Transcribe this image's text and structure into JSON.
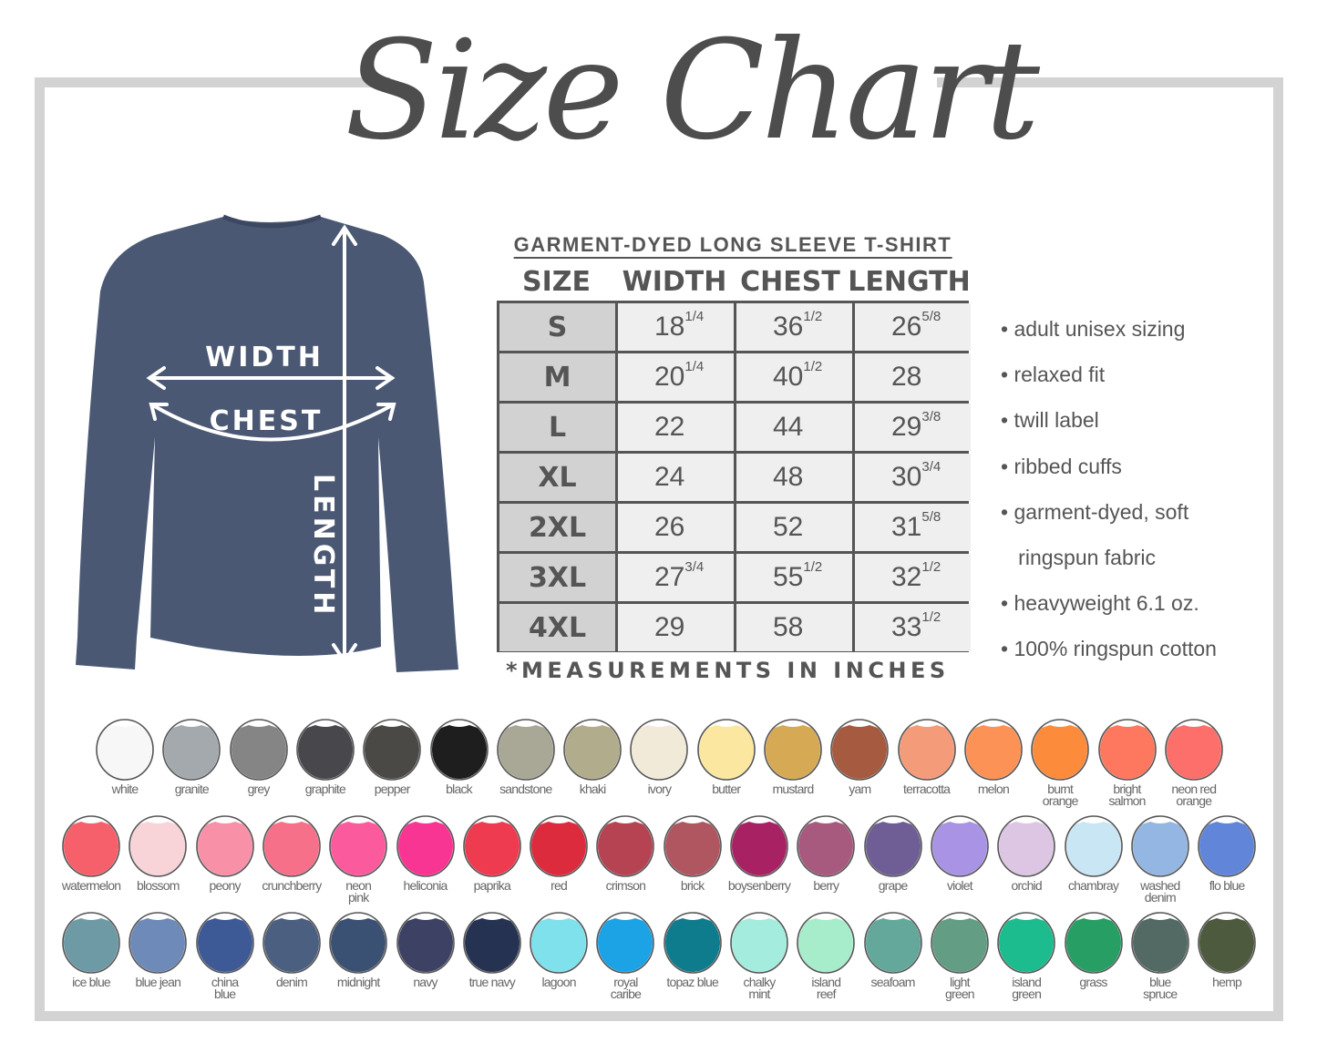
{
  "title": "Size Chart",
  "diagram": {
    "width_label": "WIDTH",
    "chest_label": "CHEST",
    "length_label": "LENGTH",
    "shirt_color": "#4b5874"
  },
  "table": {
    "title": "GARMENT-DYED LONG SLEEVE T-SHIRT",
    "headers": [
      "SIZE",
      "WIDTH",
      "CHEST",
      "LENGTH"
    ],
    "rows": [
      [
        {
          "w": "S"
        },
        {
          "w": "18",
          "f": "1/4"
        },
        {
          "w": "36",
          "f": "1/2"
        },
        {
          "w": "26",
          "f": "5/8"
        }
      ],
      [
        {
          "w": "M"
        },
        {
          "w": "20",
          "f": "1/4"
        },
        {
          "w": "40",
          "f": "1/2"
        },
        {
          "w": "28"
        }
      ],
      [
        {
          "w": "L"
        },
        {
          "w": "22"
        },
        {
          "w": "44"
        },
        {
          "w": "29",
          "f": "3/8"
        }
      ],
      [
        {
          "w": "XL"
        },
        {
          "w": "24"
        },
        {
          "w": "48"
        },
        {
          "w": "30",
          "f": "3/4"
        }
      ],
      [
        {
          "w": "2XL"
        },
        {
          "w": "26"
        },
        {
          "w": "52"
        },
        {
          "w": "31",
          "f": "5/8"
        }
      ],
      [
        {
          "w": "3XL"
        },
        {
          "w": "27",
          "f": "3/4"
        },
        {
          "w": "55",
          "f": "1/2"
        },
        {
          "w": "32",
          "f": "1/2"
        }
      ],
      [
        {
          "w": "4XL"
        },
        {
          "w": "29"
        },
        {
          "w": "58"
        },
        {
          "w": "33",
          "f": "1/2"
        }
      ]
    ],
    "note": "*MEASUREMENTS IN INCHES"
  },
  "features": [
    "• adult unisex sizing",
    "• relaxed fit",
    "• twill label",
    "• ribbed cuffs",
    "• garment-dyed, soft",
    "   ringspun fabric",
    "• heavyweight 6.1 oz.",
    "• 100% ringspun cotton"
  ],
  "colors": [
    [
      [
        "white",
        "#f7f7f7"
      ],
      [
        "granite",
        "#a3a9ad"
      ],
      [
        "grey",
        "#858585"
      ],
      [
        "graphite",
        "#48474c"
      ],
      [
        "pepper",
        "#4a4945"
      ],
      [
        "black",
        "#1e1e1e"
      ],
      [
        "sandstone",
        "#a9a796"
      ],
      [
        "khaki",
        "#b1ad8c"
      ],
      [
        "ivory",
        "#f2ead8"
      ],
      [
        "butter",
        "#fbe7a0"
      ],
      [
        "mustard",
        "#d6aa55"
      ],
      [
        "yam",
        "#a65a3f"
      ],
      [
        "terracotta",
        "#f49b79"
      ],
      [
        "melon",
        "#fd9256"
      ],
      [
        "burnt\norange",
        "#fd8b3c"
      ],
      [
        "bright\nsalmon",
        "#fd785e"
      ],
      [
        "neon red\norange",
        "#fd6f6a"
      ]
    ],
    [
      [
        "watermelon",
        "#f6606a"
      ],
      [
        "blossom",
        "#f8d3d8"
      ],
      [
        "peony",
        "#f890a8"
      ],
      [
        "crunchberry",
        "#f57088"
      ],
      [
        "neon\npink",
        "#fb5b9d"
      ],
      [
        "heliconia",
        "#f93593"
      ],
      [
        "paprika",
        "#ef3b4f"
      ],
      [
        "red",
        "#dc2b3d"
      ],
      [
        "crimson",
        "#b64351"
      ],
      [
        "brick",
        "#b05660"
      ],
      [
        "boysenberry",
        "#a82263"
      ],
      [
        "berry",
        "#a85a7e"
      ],
      [
        "grape",
        "#6f5d96"
      ],
      [
        "violet",
        "#a893e4"
      ],
      [
        "orchid",
        "#dcc6e4"
      ],
      [
        "chambray",
        "#c8e6f3"
      ],
      [
        "washed\ndenim",
        "#93b6e3"
      ],
      [
        "flo blue",
        "#6185d9"
      ]
    ],
    [
      [
        "ice blue",
        "#6e9aa6"
      ],
      [
        "blue jean",
        "#6e8ab8"
      ],
      [
        "china\nblue",
        "#3d5996"
      ],
      [
        "denim",
        "#4b5f80"
      ],
      [
        "midnight",
        "#3b5173"
      ],
      [
        "navy",
        "#3d4164"
      ],
      [
        "true navy",
        "#253252"
      ],
      [
        "lagoon",
        "#7fe1ec"
      ],
      [
        "royal\ncaribe",
        "#1ca3e6"
      ],
      [
        "topaz blue",
        "#0f7c8e"
      ],
      [
        "chalky\nmint",
        "#a4ecde"
      ],
      [
        "island\nreef",
        "#a8edcb"
      ],
      [
        "seafoam",
        "#64a89c"
      ],
      [
        "light\ngreen",
        "#629d84"
      ],
      [
        "island\ngreen",
        "#1dbc8e"
      ],
      [
        "grass",
        "#279e63"
      ],
      [
        "blue\nspruce",
        "#536964"
      ],
      [
        "hemp",
        "#4d5a3d"
      ]
    ]
  ]
}
